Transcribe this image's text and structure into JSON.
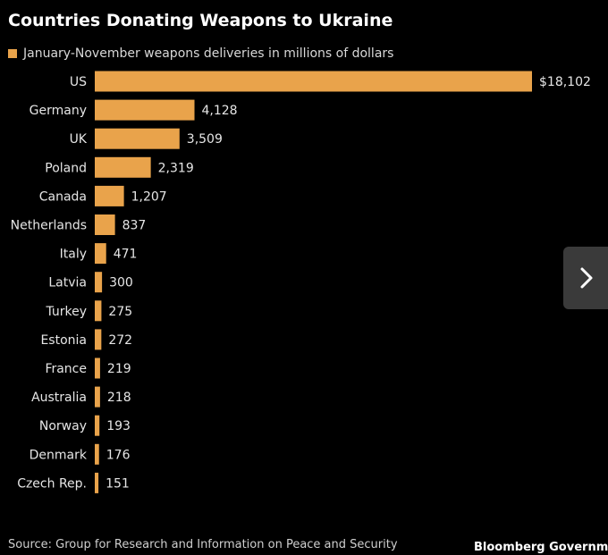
{
  "colors": {
    "bar": "#e9a34b",
    "background": "#000000",
    "label": "#e6e6e6"
  },
  "chart_data": {
    "type": "bar",
    "orientation": "horizontal",
    "title": "Countries Donating Weapons to Ukraine",
    "legend_label": "January-November weapons deliveries in millions of dollars",
    "legend_position": "top-left",
    "categories": [
      "US",
      "Germany",
      "UK",
      "Poland",
      "Canada",
      "Netherlands",
      "Italy",
      "Latvia",
      "Turkey",
      "Estonia",
      "France",
      "Australia",
      "Norway",
      "Denmark",
      "Czech Rep."
    ],
    "values": [
      18102,
      4128,
      3509,
      2319,
      1207,
      837,
      471,
      300,
      275,
      272,
      219,
      218,
      193,
      176,
      151
    ],
    "value_labels": [
      "$18,102",
      "4,128",
      "3,509",
      "2,319",
      "1,207",
      "837",
      "471",
      "300",
      "275",
      "272",
      "219",
      "218",
      "193",
      "176",
      "151"
    ],
    "xlim": [
      0,
      18102
    ],
    "grid": false
  },
  "footer": {
    "source": "Source: Group for Research and Information on Peace and Security",
    "brand": "Bloomberg Government"
  },
  "nav": {
    "next_icon": "chevron-right-icon"
  }
}
